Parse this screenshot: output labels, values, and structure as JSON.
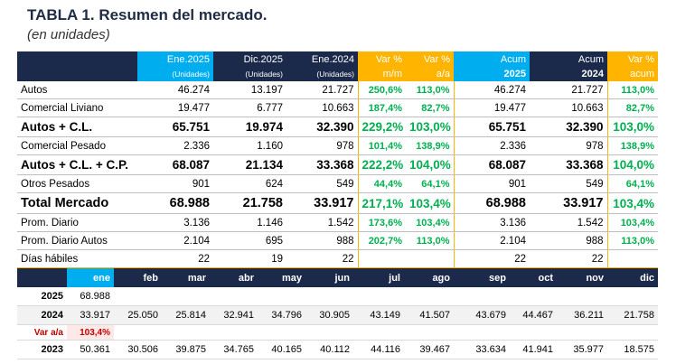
{
  "title": "TABLA 1. Resumen del mercado.",
  "subtitle": "(en unidades)",
  "main": {
    "headers": {
      "ene2025": "Ene.2025",
      "dic2025": "Dic.2025",
      "ene2024": "Ene.2024",
      "unidades": "(Unidades)",
      "var_pct_1": "Var %",
      "mm": "m/m",
      "var_pct_2": "Var %",
      "aa": "a/a",
      "acum_1": "Acum",
      "y2025": "2025",
      "acum_2": "Acum",
      "y2024": "2024",
      "var_pct_3": "Var %",
      "acum_3": "acum"
    },
    "rows": [
      {
        "label": "Autos",
        "c1": "46.274",
        "c2": "13.197",
        "c3": "21.727",
        "v1": "250,6%",
        "v2": "113,0%",
        "a1": "46.274",
        "a2": "21.727",
        "v3": "113,0%"
      },
      {
        "label": "Comercial Liviano",
        "c1": "19.477",
        "c2": "6.777",
        "c3": "10.663",
        "v1": "187,4%",
        "v2": "82,7%",
        "a1": "19.477",
        "a2": "10.663",
        "v3": "82,7%"
      },
      {
        "label": "Autos + C.L.",
        "c1": "65.751",
        "c2": "19.974",
        "c3": "32.390",
        "v1": "229,2%",
        "v2": "103,0%",
        "a1": "65.751",
        "a2": "32.390",
        "v3": "103,0%"
      },
      {
        "label": "Comercial Pesado",
        "c1": "2.336",
        "c2": "1.160",
        "c3": "978",
        "v1": "101,4%",
        "v2": "138,9%",
        "a1": "2.336",
        "a2": "978",
        "v3": "138,9%"
      },
      {
        "label": "Autos + C.L. + C.P.",
        "c1": "68.087",
        "c2": "21.134",
        "c3": "33.368",
        "v1": "222,2%",
        "v2": "104,0%",
        "a1": "68.087",
        "a2": "33.368",
        "v3": "104,0%"
      },
      {
        "label": "Otros Pesados",
        "c1": "901",
        "c2": "624",
        "c3": "549",
        "v1": "44,4%",
        "v2": "64,1%",
        "a1": "901",
        "a2": "549",
        "v3": "64,1%"
      },
      {
        "label": "Total Mercado",
        "c1": "68.988",
        "c2": "21.758",
        "c3": "33.917",
        "v1": "217,1%",
        "v2": "103,4%",
        "a1": "68.988",
        "a2": "33.917",
        "v3": "103,4%"
      },
      {
        "label": "Prom. Diario",
        "c1": "3.136",
        "c2": "1.146",
        "c3": "1.542",
        "v1": "173,6%",
        "v2": "103,4%",
        "a1": "3.136",
        "a2": "1.542",
        "v3": "103,4%"
      },
      {
        "label": "Prom. Diario Autos",
        "c1": "2.104",
        "c2": "695",
        "c3": "988",
        "v1": "202,7%",
        "v2": "113,0%",
        "a1": "2.104",
        "a2": "988",
        "v3": "113,0%"
      },
      {
        "label": "Días hábiles",
        "c1": "22",
        "c2": "19",
        "c3": "22",
        "v1": "",
        "v2": "",
        "a1": "22",
        "a2": "22",
        "v3": ""
      }
    ]
  },
  "monthly": {
    "months": [
      "ene",
      "feb",
      "mar",
      "abr",
      "may",
      "jun",
      "jul",
      "ago",
      "sep",
      "oct",
      "nov",
      "dic"
    ],
    "rows": [
      {
        "label": "2025",
        "values": [
          "68.988",
          "",
          "",
          "",
          "",
          "",
          "",
          "",
          "",
          "",
          "",
          ""
        ]
      },
      {
        "label": "2024",
        "values": [
          "33.917",
          "25.050",
          "25.814",
          "32.941",
          "34.796",
          "30.905",
          "43.149",
          "41.507",
          "43.679",
          "44.467",
          "36.211",
          "21.758"
        ]
      },
      {
        "label": "Var a/a",
        "values": [
          "103,4%",
          "",
          "",
          "",
          "",
          "",
          "",
          "",
          "",
          "",
          "",
          ""
        ]
      },
      {
        "label": "2023",
        "values": [
          "50.361",
          "30.506",
          "39.875",
          "34.765",
          "40.165",
          "40.112",
          "44.116",
          "39.467",
          "33.634",
          "41.941",
          "35.977",
          "18.575"
        ]
      }
    ]
  },
  "colors": {
    "navy": "#1b2a4a",
    "cyan": "#00aeef",
    "orange": "#ffb400",
    "green": "#00b050",
    "red": "#c00000"
  }
}
